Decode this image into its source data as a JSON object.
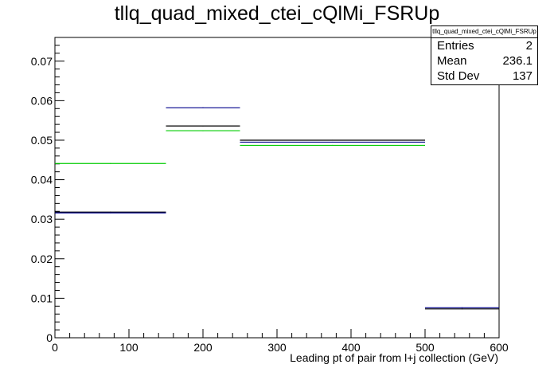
{
  "chart_data": {
    "type": "histogram",
    "title": "tllq_quad_mixed_ctei_cQlMi_FSRUp",
    "xlabel": "Leading pt of pair from l+j collection (GeV)",
    "ylabel": "",
    "xlim": [
      0,
      600
    ],
    "ylim": [
      0,
      0.076
    ],
    "x_ticks": [
      0,
      100,
      200,
      300,
      400,
      500,
      600
    ],
    "y_ticks": [
      0,
      0.01,
      0.02,
      0.03,
      0.04,
      0.05,
      0.06,
      0.07
    ],
    "y_tick_labels": [
      "0",
      "0.01",
      "0.02",
      "0.03",
      "0.04",
      "0.05",
      "0.06",
      "0.07"
    ],
    "bin_edges": [
      0,
      150,
      250,
      500,
      600
    ],
    "series": [
      {
        "color": "#000000",
        "values": [
          0.0318,
          0.0536,
          0.05,
          0.0073
        ]
      },
      {
        "color": "#00008b",
        "values": [
          0.0316,
          0.0582,
          0.0495,
          0.0076
        ]
      },
      {
        "color": "#00cc00",
        "values": [
          0.0441,
          0.0524,
          0.0487,
          null
        ]
      }
    ],
    "grid": false
  },
  "stats": {
    "name": "tllq_quad_mixed_ctei_cQlMi_FSRUp",
    "entries_label": "Entries",
    "entries_value": "2",
    "mean_label": "Mean",
    "mean_value": "236.1",
    "stddev_label": "Std Dev",
    "stddev_value": "137"
  }
}
